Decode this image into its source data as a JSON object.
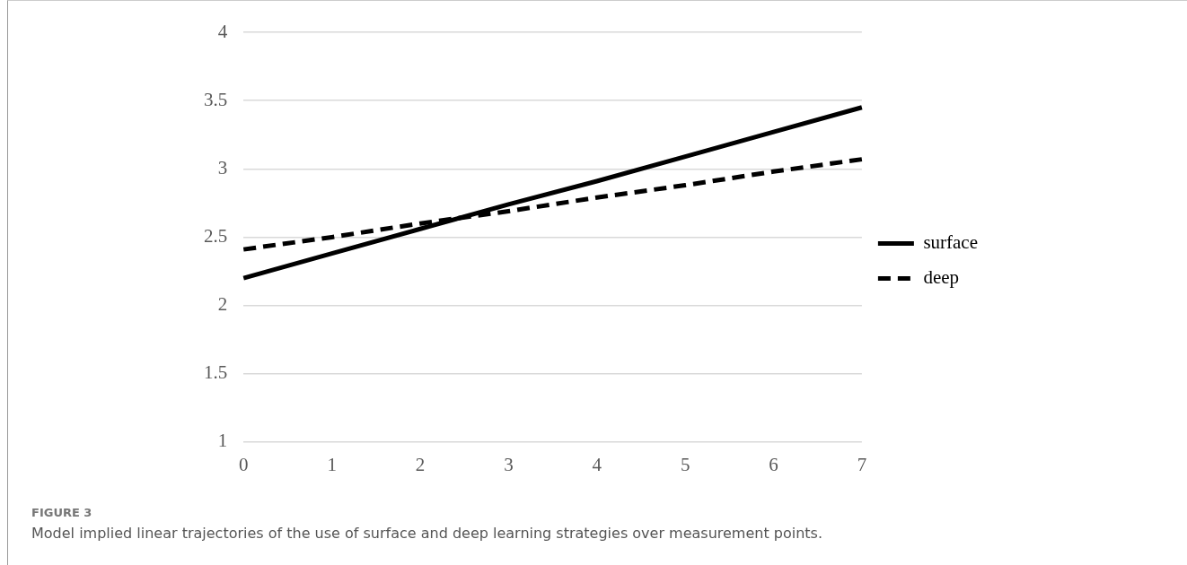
{
  "chart_data": {
    "type": "line",
    "categories": [
      "0",
      "1",
      "2",
      "3",
      "4",
      "5",
      "6",
      "7"
    ],
    "series": [
      {
        "name": "surface",
        "color": "#000000",
        "line_style": "solid",
        "values": [
          2.2,
          2.38,
          2.56,
          2.74,
          2.91,
          3.09,
          3.27,
          3.45
        ]
      },
      {
        "name": "deep",
        "color": "#000000",
        "line_style": "dashed",
        "values": [
          2.41,
          2.5,
          2.6,
          2.69,
          2.79,
          2.88,
          2.98,
          3.07
        ]
      }
    ],
    "ylim": [
      1,
      4
    ],
    "yticks": [
      1,
      1.5,
      2,
      2.5,
      3,
      3.5,
      4
    ],
    "grid": "y",
    "legend": "right",
    "marker": "none",
    "annotations": [
      "FIGURE 3",
      "Model implied linear trajectories of the use of surface and deep learning strategies over measurement points."
    ]
  }
}
